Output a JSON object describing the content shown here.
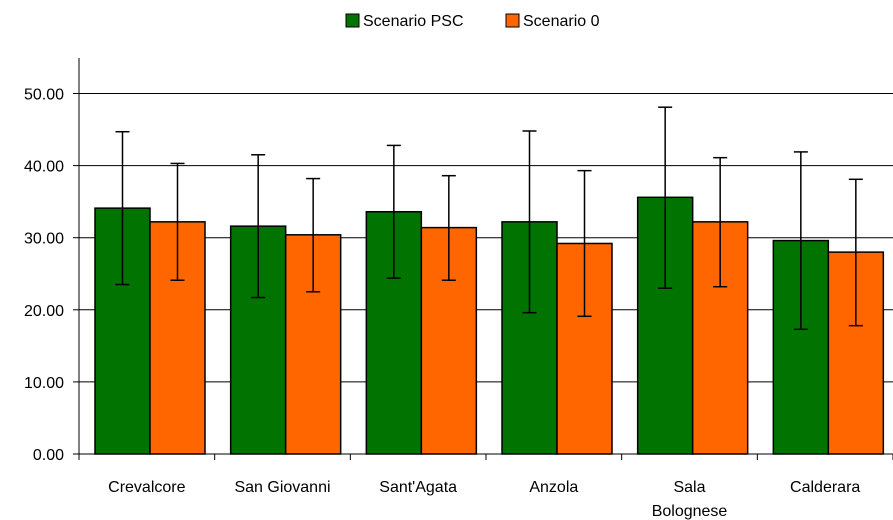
{
  "chart_data": {
    "type": "bar",
    "title": "",
    "xlabel": "",
    "ylabel": "",
    "categories": [
      [
        "Crevalcore"
      ],
      [
        "San Giovanni"
      ],
      [
        "Sant'Agata"
      ],
      [
        "Anzola"
      ],
      [
        "Sala",
        "Bolognese"
      ],
      [
        "Calderara"
      ]
    ],
    "series": [
      {
        "name": "Scenario PSC",
        "color": "#007300",
        "values": [
          34.1,
          31.6,
          33.6,
          32.2,
          35.6,
          29.6
        ],
        "error_low": [
          23.5,
          21.7,
          24.4,
          19.6,
          23.0,
          17.3
        ],
        "error_high": [
          44.7,
          41.5,
          42.8,
          44.8,
          48.1,
          41.9
        ]
      },
      {
        "name": "Scenario 0",
        "color": "#FF6600",
        "values": [
          32.2,
          30.4,
          31.4,
          29.2,
          32.2,
          28.0
        ],
        "error_low": [
          24.1,
          22.5,
          24.1,
          19.1,
          23.2,
          17.8
        ],
        "error_high": [
          40.3,
          38.2,
          38.6,
          39.3,
          41.1,
          38.1
        ]
      }
    ],
    "ylim": [
      0,
      55
    ],
    "yticks": [
      "0.00",
      "10.00",
      "20.00",
      "30.00",
      "40.00",
      "50.00"
    ],
    "ytick_values": [
      0,
      10,
      20,
      30,
      40,
      50
    ],
    "grid": true,
    "legend_position": "top-center"
  }
}
